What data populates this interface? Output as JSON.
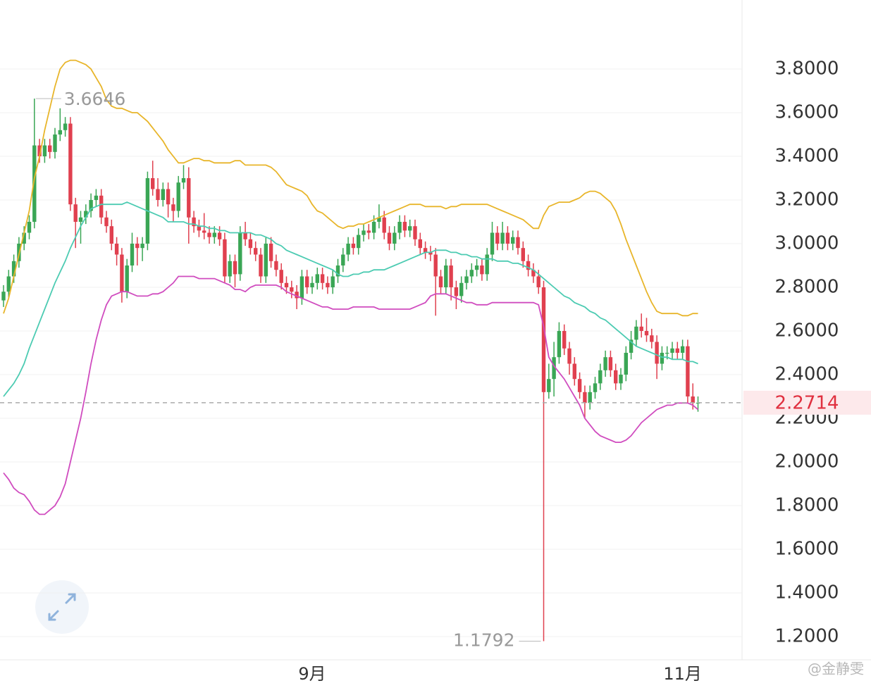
{
  "chart_data": {
    "type": "candlestick",
    "categories": [
      null,
      null,
      null,
      null,
      null,
      null,
      null,
      null,
      null,
      null,
      null,
      null,
      null,
      null,
      null,
      null,
      null,
      null,
      null,
      null,
      null,
      null,
      null,
      null,
      null,
      null,
      null,
      null,
      null,
      null,
      null,
      null,
      null,
      null,
      null,
      null,
      null,
      null,
      null,
      null,
      null,
      null,
      null,
      null,
      null,
      null,
      null,
      null,
      null,
      null,
      null,
      null,
      null,
      null,
      null,
      null,
      null,
      null,
      null,
      null,
      "9月",
      null,
      null,
      null,
      null,
      null,
      null,
      null,
      null,
      null,
      null,
      null,
      null,
      null,
      null,
      null,
      null,
      null,
      null,
      null,
      null,
      null,
      null,
      null,
      null,
      null,
      null,
      null,
      null,
      null,
      null,
      null,
      null,
      null,
      null,
      null,
      null,
      null,
      null,
      null,
      null,
      null,
      null,
      null,
      null,
      null,
      null,
      null,
      null,
      null,
      null,
      null,
      null,
      null,
      null,
      null,
      null,
      null,
      null,
      null,
      null,
      null,
      null,
      null,
      null,
      null,
      null,
      null,
      null,
      null,
      null,
      null,
      "11月",
      null,
      null,
      null
    ],
    "open": [
      2.74,
      2.78,
      2.85,
      2.92,
      3.0,
      3.05,
      3.1,
      3.45,
      3.4,
      3.45,
      3.42,
      3.5,
      3.52,
      3.55,
      3.18,
      3.1,
      3.12,
      3.15,
      3.2,
      3.22,
      3.12,
      3.08,
      3.0,
      2.95,
      2.78,
      2.9,
      3.0,
      2.98,
      3.0,
      3.3,
      3.25,
      3.2,
      3.25,
      3.18,
      3.15,
      3.28,
      3.3,
      3.12,
      3.08,
      3.06,
      3.05,
      3.03,
      3.05,
      3.02,
      2.85,
      2.92,
      2.86,
      3.05,
      3.02,
      2.98,
      2.95,
      2.85,
      3.0,
      2.92,
      2.88,
      2.82,
      2.8,
      2.78,
      2.75,
      2.85,
      2.8,
      2.82,
      2.86,
      2.82,
      2.8,
      2.85,
      2.9,
      2.95,
      3.0,
      2.98,
      3.04,
      3.06,
      3.05,
      3.1,
      3.12,
      3.05,
      3.0,
      3.05,
      3.1,
      3.06,
      3.08,
      3.02,
      2.98,
      2.96,
      2.95,
      2.85,
      2.8,
      2.9,
      2.8,
      2.76,
      2.82,
      2.85,
      2.88,
      2.9,
      2.86,
      2.95,
      3.05,
      3.0,
      3.05,
      3.0,
      3.03,
      2.98,
      2.92,
      2.88,
      2.85,
      2.8,
      2.32,
      2.38,
      2.48,
      2.6,
      2.52,
      2.45,
      2.38,
      2.32,
      2.27,
      2.32,
      2.36,
      2.42,
      2.48,
      2.42,
      2.36,
      2.4,
      2.5,
      2.56,
      2.62,
      2.6,
      2.58,
      2.55,
      2.45,
      2.5,
      2.5,
      2.52,
      2.5,
      2.53,
      2.3,
      2.27
    ],
    "high": [
      2.81,
      2.88,
      2.95,
      3.03,
      3.08,
      3.13,
      3.6646,
      3.48,
      3.48,
      3.48,
      3.53,
      3.62,
      3.58,
      3.58,
      3.21,
      3.15,
      3.18,
      3.23,
      3.25,
      3.25,
      3.15,
      3.11,
      3.03,
      2.98,
      2.93,
      3.05,
      3.03,
      3.03,
      3.33,
      3.38,
      3.3,
      3.28,
      3.28,
      3.21,
      3.31,
      3.36,
      3.35,
      3.15,
      3.11,
      3.14,
      3.08,
      3.08,
      3.08,
      3.05,
      2.95,
      2.95,
      3.08,
      3.1,
      3.05,
      3.01,
      2.98,
      3.03,
      3.03,
      2.95,
      2.91,
      2.85,
      2.83,
      2.81,
      2.88,
      2.88,
      2.85,
      2.89,
      2.89,
      2.85,
      2.88,
      2.93,
      2.98,
      3.03,
      3.03,
      3.07,
      3.09,
      3.09,
      3.13,
      3.18,
      3.15,
      3.08,
      3.08,
      3.13,
      3.13,
      3.11,
      3.11,
      3.05,
      3.01,
      2.99,
      2.98,
      2.88,
      2.93,
      2.93,
      2.83,
      2.85,
      2.88,
      2.91,
      2.93,
      2.93,
      2.98,
      3.1,
      3.08,
      3.1,
      3.08,
      3.06,
      3.06,
      3.01,
      2.95,
      2.91,
      2.88,
      2.83,
      2.45,
      2.55,
      2.64,
      2.63,
      2.55,
      2.48,
      2.41,
      2.35,
      2.35,
      2.39,
      2.45,
      2.51,
      2.51,
      2.45,
      2.43,
      2.53,
      2.6,
      2.65,
      2.68,
      2.66,
      2.61,
      2.58,
      2.53,
      2.53,
      2.55,
      2.55,
      2.56,
      2.56,
      2.36,
      2.3
    ],
    "low": [
      2.71,
      2.75,
      2.82,
      2.89,
      2.97,
      3.02,
      3.07,
      3.37,
      3.37,
      3.39,
      3.39,
      3.47,
      3.49,
      3.15,
      2.98,
      3.0,
      3.09,
      3.12,
      3.17,
      3.09,
      3.05,
      2.97,
      2.9,
      2.73,
      2.75,
      2.87,
      2.9,
      2.92,
      2.97,
      3.22,
      3.17,
      3.17,
      3.12,
      3.1,
      3.12,
      3.25,
      3.0,
      3.05,
      3.03,
      3.02,
      3.0,
      3.0,
      2.99,
      2.82,
      2.82,
      2.8,
      2.83,
      2.99,
      2.95,
      2.92,
      2.82,
      2.82,
      2.89,
      2.85,
      2.79,
      2.77,
      2.75,
      2.7,
      2.72,
      2.77,
      2.77,
      2.79,
      2.79,
      2.77,
      2.77,
      2.82,
      2.87,
      2.92,
      2.95,
      2.95,
      3.01,
      3.02,
      3.02,
      3.07,
      3.02,
      2.97,
      2.97,
      3.02,
      3.03,
      3.03,
      2.99,
      2.95,
      2.93,
      2.92,
      2.67,
      2.77,
      2.77,
      2.74,
      2.7,
      2.73,
      2.79,
      2.82,
      2.85,
      2.83,
      2.83,
      2.92,
      2.97,
      2.97,
      2.97,
      2.97,
      2.95,
      2.89,
      2.85,
      2.82,
      2.77,
      1.1792,
      2.29,
      2.3,
      2.45,
      2.49,
      2.4,
      2.35,
      2.29,
      2.2,
      2.24,
      2.29,
      2.33,
      2.39,
      2.39,
      2.33,
      2.33,
      2.37,
      2.47,
      2.53,
      2.57,
      2.55,
      2.52,
      2.38,
      2.42,
      2.47,
      2.47,
      2.47,
      2.47,
      2.27,
      2.24,
      2.23
    ],
    "close": [
      2.78,
      2.85,
      2.92,
      3.0,
      3.05,
      3.1,
      3.45,
      3.4,
      3.45,
      3.42,
      3.5,
      3.52,
      3.55,
      3.18,
      3.1,
      3.12,
      3.15,
      3.2,
      3.22,
      3.12,
      3.08,
      3.0,
      2.95,
      2.78,
      2.9,
      3.0,
      2.98,
      3.0,
      3.3,
      3.25,
      3.2,
      3.25,
      3.18,
      3.15,
      3.28,
      3.3,
      3.12,
      3.08,
      3.06,
      3.05,
      3.03,
      3.05,
      3.02,
      2.85,
      2.92,
      2.86,
      3.05,
      3.02,
      2.98,
      2.95,
      2.85,
      3.0,
      2.92,
      2.88,
      2.82,
      2.8,
      2.78,
      2.75,
      2.85,
      2.8,
      2.82,
      2.86,
      2.82,
      2.8,
      2.85,
      2.9,
      2.95,
      3.0,
      2.98,
      3.04,
      3.06,
      3.05,
      3.1,
      3.12,
      3.05,
      3.0,
      3.05,
      3.1,
      3.06,
      3.08,
      3.02,
      2.98,
      2.96,
      2.95,
      2.85,
      2.8,
      2.9,
      2.8,
      2.76,
      2.82,
      2.85,
      2.88,
      2.9,
      2.86,
      2.95,
      3.05,
      3.0,
      3.05,
      3.0,
      3.03,
      2.98,
      2.92,
      2.88,
      2.85,
      2.8,
      2.32,
      2.38,
      2.48,
      2.6,
      2.52,
      2.45,
      2.38,
      2.32,
      2.27,
      2.32,
      2.36,
      2.42,
      2.48,
      2.42,
      2.36,
      2.4,
      2.5,
      2.56,
      2.62,
      2.6,
      2.58,
      2.55,
      2.45,
      2.5,
      2.5,
      2.52,
      2.5,
      2.53,
      2.3,
      2.27,
      2.2714
    ],
    "up_color": "#3aa655",
    "down_color": "#e0404f",
    "lines": [
      {
        "color": "#e8b52a",
        "values": [
          2.68,
          2.75,
          2.85,
          2.95,
          3.05,
          3.15,
          3.3,
          3.4,
          3.52,
          3.62,
          3.72,
          3.8,
          3.83,
          3.84,
          3.84,
          3.83,
          3.82,
          3.8,
          3.76,
          3.72,
          3.66,
          3.63,
          3.62,
          3.62,
          3.61,
          3.6,
          3.6,
          3.58,
          3.56,
          3.53,
          3.5,
          3.47,
          3.43,
          3.4,
          3.37,
          3.37,
          3.38,
          3.39,
          3.39,
          3.38,
          3.38,
          3.37,
          3.37,
          3.37,
          3.37,
          3.38,
          3.38,
          3.36,
          3.36,
          3.36,
          3.36,
          3.36,
          3.35,
          3.33,
          3.3,
          3.27,
          3.26,
          3.25,
          3.24,
          3.22,
          3.18,
          3.15,
          3.14,
          3.12,
          3.1,
          3.08,
          3.07,
          3.08,
          3.08,
          3.09,
          3.09,
          3.1,
          3.11,
          3.12,
          3.13,
          3.14,
          3.15,
          3.16,
          3.17,
          3.18,
          3.18,
          3.18,
          3.17,
          3.17,
          3.17,
          3.17,
          3.16,
          3.17,
          3.17,
          3.18,
          3.18,
          3.18,
          3.18,
          3.18,
          3.18,
          3.17,
          3.16,
          3.15,
          3.14,
          3.13,
          3.12,
          3.11,
          3.09,
          3.07,
          3.07,
          3.13,
          3.17,
          3.18,
          3.19,
          3.19,
          3.19,
          3.2,
          3.21,
          3.23,
          3.24,
          3.24,
          3.23,
          3.21,
          3.19,
          3.15,
          3.09,
          3.02,
          2.96,
          2.9,
          2.84,
          2.78,
          2.73,
          2.69,
          2.68,
          2.68,
          2.68,
          2.68,
          2.67,
          2.67,
          2.68,
          2.68
        ]
      },
      {
        "color": "#4ccbb2",
        "values": [
          2.3,
          2.33,
          2.36,
          2.4,
          2.45,
          2.52,
          2.58,
          2.64,
          2.7,
          2.76,
          2.82,
          2.87,
          2.92,
          2.98,
          3.03,
          3.08,
          3.12,
          3.16,
          3.17,
          3.18,
          3.18,
          3.18,
          3.18,
          3.18,
          3.19,
          3.18,
          3.17,
          3.16,
          3.15,
          3.14,
          3.13,
          3.12,
          3.1,
          3.1,
          3.1,
          3.1,
          3.09,
          3.09,
          3.08,
          3.08,
          3.07,
          3.07,
          3.06,
          3.06,
          3.05,
          3.05,
          3.05,
          3.05,
          3.05,
          3.04,
          3.04,
          3.03,
          3.02,
          3.0,
          2.99,
          2.97,
          2.96,
          2.95,
          2.94,
          2.93,
          2.92,
          2.91,
          2.9,
          2.89,
          2.88,
          2.86,
          2.85,
          2.85,
          2.86,
          2.86,
          2.87,
          2.87,
          2.88,
          2.88,
          2.88,
          2.89,
          2.9,
          2.91,
          2.92,
          2.93,
          2.94,
          2.95,
          2.96,
          2.96,
          2.97,
          2.97,
          2.97,
          2.96,
          2.96,
          2.95,
          2.95,
          2.94,
          2.94,
          2.93,
          2.93,
          2.93,
          2.92,
          2.92,
          2.92,
          2.91,
          2.91,
          2.9,
          2.89,
          2.88,
          2.86,
          2.84,
          2.82,
          2.8,
          2.78,
          2.76,
          2.75,
          2.73,
          2.72,
          2.71,
          2.69,
          2.68,
          2.66,
          2.65,
          2.63,
          2.61,
          2.59,
          2.57,
          2.55,
          2.53,
          2.52,
          2.51,
          2.5,
          2.49,
          2.48,
          2.48,
          2.47,
          2.47,
          2.47,
          2.46,
          2.46,
          2.45
        ]
      },
      {
        "color": "#d04cbf",
        "values": [
          1.95,
          1.92,
          1.88,
          1.86,
          1.85,
          1.82,
          1.78,
          1.76,
          1.76,
          1.78,
          1.8,
          1.84,
          1.9,
          2.0,
          2.1,
          2.2,
          2.32,
          2.45,
          2.56,
          2.65,
          2.72,
          2.76,
          2.77,
          2.78,
          2.78,
          2.77,
          2.76,
          2.76,
          2.76,
          2.77,
          2.77,
          2.78,
          2.8,
          2.82,
          2.85,
          2.85,
          2.85,
          2.85,
          2.84,
          2.84,
          2.84,
          2.84,
          2.83,
          2.82,
          2.81,
          2.79,
          2.79,
          2.78,
          2.8,
          2.81,
          2.81,
          2.81,
          2.81,
          2.81,
          2.8,
          2.78,
          2.77,
          2.76,
          2.75,
          2.74,
          2.73,
          2.72,
          2.71,
          2.71,
          2.7,
          2.7,
          2.7,
          2.7,
          2.71,
          2.71,
          2.71,
          2.71,
          2.71,
          2.7,
          2.7,
          2.7,
          2.7,
          2.7,
          2.7,
          2.7,
          2.71,
          2.72,
          2.73,
          2.76,
          2.77,
          2.77,
          2.77,
          2.76,
          2.75,
          2.74,
          2.73,
          2.73,
          2.72,
          2.72,
          2.72,
          2.73,
          2.73,
          2.73,
          2.73,
          2.73,
          2.73,
          2.73,
          2.73,
          2.73,
          2.72,
          2.62,
          2.48,
          2.44,
          2.41,
          2.38,
          2.34,
          2.3,
          2.26,
          2.2,
          2.17,
          2.14,
          2.12,
          2.11,
          2.1,
          2.09,
          2.09,
          2.1,
          2.12,
          2.15,
          2.18,
          2.2,
          2.22,
          2.24,
          2.25,
          2.26,
          2.26,
          2.27,
          2.27,
          2.27,
          2.26,
          2.24
        ]
      }
    ],
    "ylim": [
      1.1,
      4.1
    ],
    "yticks": [
      {
        "value": 1.2,
        "label": "1.2000"
      },
      {
        "value": 1.4,
        "label": "1.4000"
      },
      {
        "value": 1.6,
        "label": "1.6000"
      },
      {
        "value": 1.8,
        "label": "1.8000"
      },
      {
        "value": 2.0,
        "label": "2.0000"
      },
      {
        "value": 2.2,
        "label": "2.2000"
      },
      {
        "value": 2.4,
        "label": "2.4000"
      },
      {
        "value": 2.6,
        "label": "2.6000"
      },
      {
        "value": 2.8,
        "label": "2.8000"
      },
      {
        "value": 3.0,
        "label": "3.0000"
      },
      {
        "value": 3.2,
        "label": "3.2000"
      },
      {
        "value": 3.4,
        "label": "3.4000"
      },
      {
        "value": 3.6,
        "label": "3.6000"
      },
      {
        "value": 3.8,
        "label": "3.8000"
      }
    ],
    "grid": true,
    "watermark": "@金静雯"
  }
}
